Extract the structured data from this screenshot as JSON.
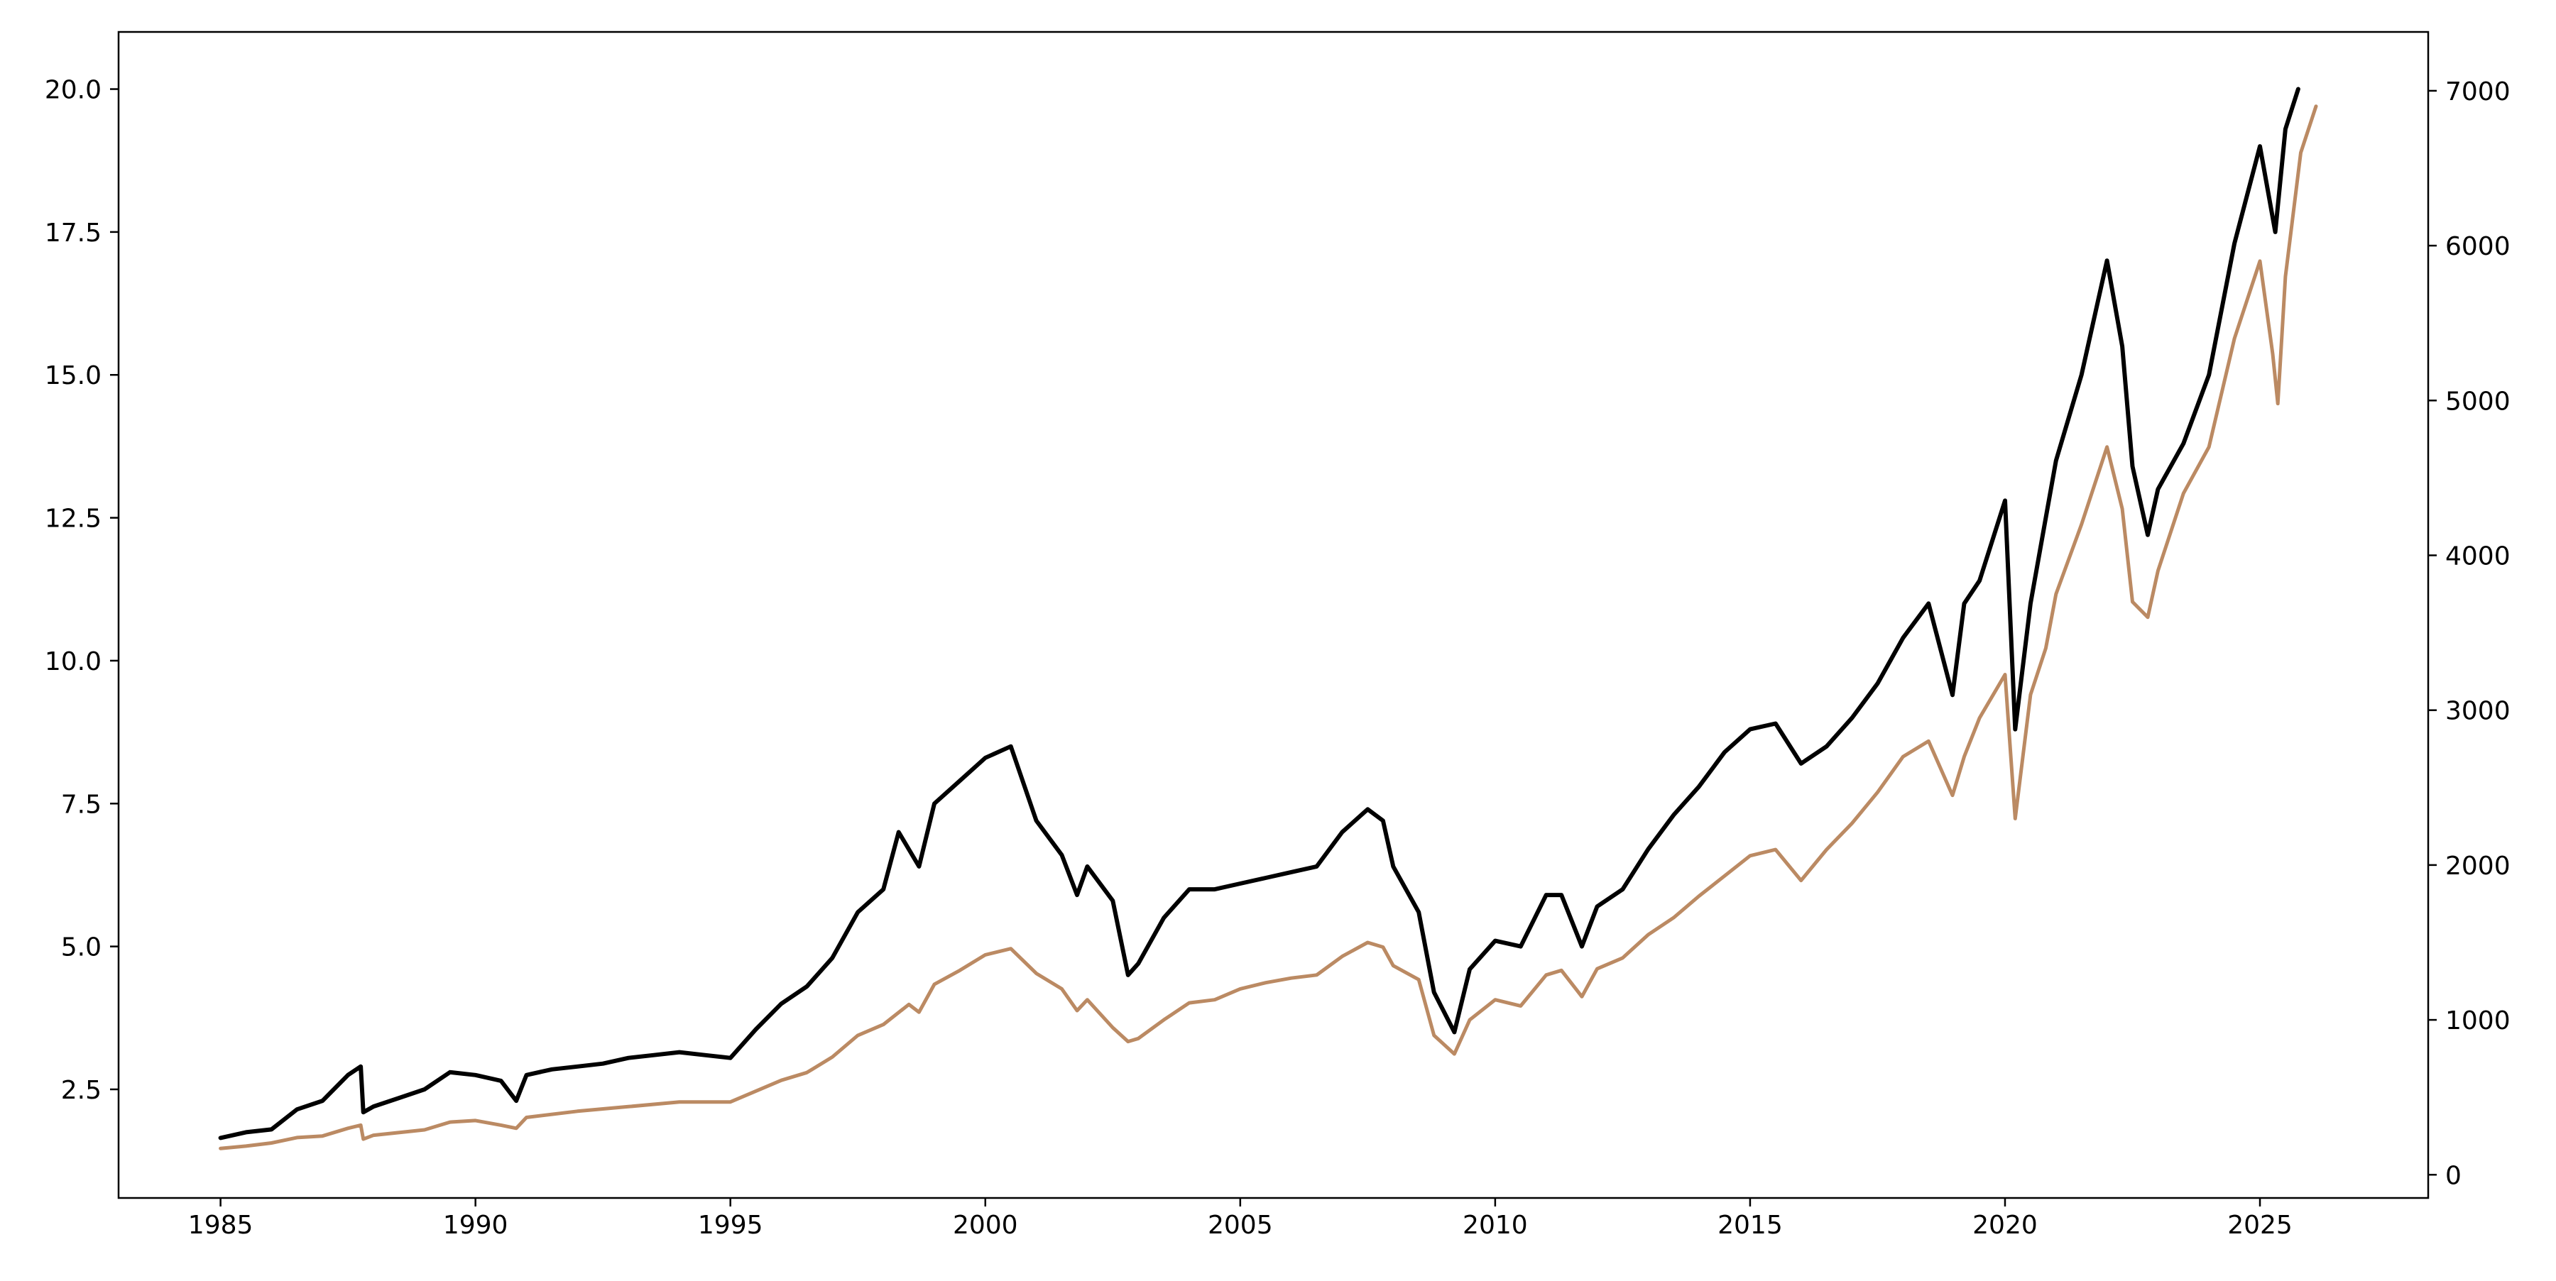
{
  "chart_data": {
    "type": "line",
    "title": "",
    "xlabel": "",
    "ylabel_left": "",
    "ylabel_right": "",
    "grid": false,
    "legend": "none",
    "xlim": [
      1983,
      2028.3
    ],
    "ylim_left": [
      0.6,
      21.0
    ],
    "ylim_right": [
      -150,
      7380
    ],
    "x_ticks": [
      1985,
      1990,
      1995,
      2000,
      2005,
      2010,
      2015,
      2020,
      2025
    ],
    "x_tick_labels": [
      "1985",
      "1990",
      "1995",
      "2000",
      "2005",
      "2010",
      "2015",
      "2020",
      "2025"
    ],
    "y_left_ticks": [
      2.5,
      5.0,
      7.5,
      10.0,
      12.5,
      15.0,
      17.5,
      20.0
    ],
    "y_left_tick_labels": [
      "2.5",
      "5.0",
      "7.5",
      "10.0",
      "12.5",
      "15.0",
      "17.5",
      "20.0"
    ],
    "y_right_ticks": [
      0,
      1000,
      2000,
      3000,
      4000,
      5000,
      6000,
      7000
    ],
    "y_right_tick_labels": [
      "0",
      "1000",
      "2000",
      "3000",
      "4000",
      "5000",
      "6000",
      "7000"
    ],
    "series": [
      {
        "name": "black series (left axis)",
        "axis": "left",
        "color": "#000000",
        "x": [
          1985.0,
          1985.5,
          1986.0,
          1986.5,
          1987.0,
          1987.5,
          1987.75,
          1987.8,
          1988.0,
          1988.5,
          1989.0,
          1989.5,
          1990.0,
          1990.5,
          1990.8,
          1991.0,
          1991.5,
          1992.0,
          1992.5,
          1993.0,
          1993.5,
          1994.0,
          1994.5,
          1995.0,
          1995.5,
          1996.0,
          1996.5,
          1997.0,
          1997.5,
          1998.0,
          1998.3,
          1998.7,
          1999.0,
          1999.5,
          2000.0,
          2000.5,
          2001.0,
          2001.5,
          2001.8,
          2002.0,
          2002.5,
          2002.8,
          2003.0,
          2003.5,
          2004.0,
          2004.5,
          2005.0,
          2005.5,
          2006.0,
          2006.5,
          2007.0,
          2007.5,
          2007.8,
          2008.0,
          2008.5,
          2008.8,
          2009.2,
          2009.5,
          2010.0,
          2010.5,
          2011.0,
          2011.3,
          2011.7,
          2012.0,
          2012.5,
          2013.0,
          2013.5,
          2014.0,
          2014.5,
          2015.0,
          2015.5,
          2016.0,
          2016.5,
          2017.0,
          2017.5,
          2018.0,
          2018.5,
          2018.97,
          2019.2,
          2019.5,
          2020.0,
          2020.2,
          2020.5,
          2020.8,
          2021.0,
          2021.5,
          2022.0,
          2022.3,
          2022.5,
          2022.8,
          2023.0,
          2023.5,
          2024.0,
          2024.5,
          2025.0,
          2025.3,
          2025.5,
          2025.75
        ],
        "y": [
          1.65,
          1.75,
          1.8,
          2.15,
          2.3,
          2.75,
          2.9,
          2.1,
          2.2,
          2.35,
          2.5,
          2.8,
          2.75,
          2.65,
          2.3,
          2.75,
          2.85,
          2.9,
          2.95,
          3.05,
          3.1,
          3.15,
          3.1,
          3.05,
          3.55,
          4.0,
          4.3,
          4.8,
          5.6,
          6.0,
          7.0,
          6.4,
          7.5,
          7.9,
          8.3,
          8.5,
          7.2,
          6.6,
          5.9,
          6.4,
          5.8,
          4.5,
          4.7,
          5.5,
          6.0,
          6.0,
          6.1,
          6.2,
          6.3,
          6.4,
          7.0,
          7.4,
          7.2,
          6.4,
          5.6,
          4.2,
          3.5,
          4.6,
          5.1,
          5.0,
          5.9,
          5.9,
          5.0,
          5.7,
          6.0,
          6.7,
          7.3,
          7.8,
          8.4,
          8.8,
          8.9,
          8.2,
          8.5,
          9.0,
          9.6,
          10.4,
          11.0,
          9.4,
          11.0,
          11.4,
          12.8,
          8.8,
          11.0,
          12.5,
          13.5,
          15.0,
          17.0,
          15.5,
          13.4,
          12.2,
          13.0,
          13.8,
          15.0,
          17.3,
          19.0,
          17.5,
          19.3,
          20.0
        ]
      },
      {
        "name": "tan series (right axis)",
        "axis": "right",
        "color": "#bb8a63",
        "x": [
          1985.0,
          1985.5,
          1986.0,
          1986.5,
          1987.0,
          1987.5,
          1987.75,
          1987.8,
          1988.0,
          1989.0,
          1989.5,
          1990.0,
          1990.5,
          1990.8,
          1991.0,
          1992.0,
          1993.0,
          1994.0,
          1995.0,
          1995.5,
          1996.0,
          1996.5,
          1997.0,
          1997.5,
          1998.0,
          1998.5,
          1998.7,
          1999.0,
          1999.5,
          2000.0,
          2000.5,
          2001.0,
          2001.5,
          2001.8,
          2002.0,
          2002.5,
          2002.8,
          2003.0,
          2003.5,
          2004.0,
          2004.5,
          2005.0,
          2005.5,
          2006.0,
          2006.5,
          2007.0,
          2007.5,
          2007.8,
          2008.0,
          2008.5,
          2008.8,
          2009.2,
          2009.5,
          2010.0,
          2010.5,
          2011.0,
          2011.3,
          2011.7,
          2012.0,
          2012.5,
          2013.0,
          2013.5,
          2014.0,
          2014.5,
          2015.0,
          2015.5,
          2016.0,
          2016.5,
          2017.0,
          2017.5,
          2018.0,
          2018.5,
          2018.97,
          2019.2,
          2019.5,
          2020.0,
          2020.2,
          2020.5,
          2020.8,
          2021.0,
          2021.5,
          2022.0,
          2022.3,
          2022.5,
          2022.8,
          2023.0,
          2023.5,
          2024.0,
          2024.5,
          2025.0,
          2025.25,
          2025.35,
          2025.5,
          2025.8,
          2026.1
        ],
        "y": [
          170,
          185,
          205,
          240,
          250,
          300,
          320,
          230,
          255,
          290,
          340,
          350,
          320,
          300,
          370,
          410,
          440,
          470,
          470,
          540,
          610,
          660,
          760,
          900,
          970,
          1100,
          1050,
          1230,
          1320,
          1420,
          1460,
          1300,
          1200,
          1060,
          1130,
          950,
          860,
          880,
          1000,
          1110,
          1130,
          1200,
          1240,
          1270,
          1290,
          1410,
          1500,
          1470,
          1350,
          1260,
          900,
          780,
          1000,
          1130,
          1090,
          1290,
          1320,
          1150,
          1330,
          1400,
          1550,
          1660,
          1800,
          1930,
          2060,
          2100,
          1900,
          2100,
          2270,
          2470,
          2700,
          2800,
          2450,
          2700,
          2950,
          3230,
          2300,
          3100,
          3400,
          3750,
          4200,
          4700,
          4300,
          3700,
          3600,
          3900,
          4400,
          4700,
          5400,
          5900,
          5300,
          4980,
          5800,
          6600,
          6900
        ]
      }
    ]
  }
}
